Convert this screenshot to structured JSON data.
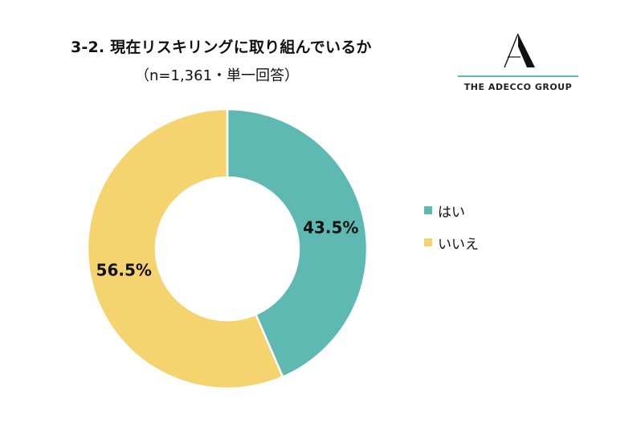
{
  "header": {
    "title": "3-2. 現在リスキリングに取り組んでいるか",
    "subtitle": "（n=1,361・単一回答）"
  },
  "logo": {
    "text": "THE ADECCO GROUP",
    "line_color": "#5ab9b3"
  },
  "chart_data": {
    "type": "pie",
    "donut": true,
    "title": "3-2. 現在リスキリングに取り組んでいるか",
    "subtitle": "（n=1,361・単一回答）",
    "categories": [
      "はい",
      "いいえ"
    ],
    "values": [
      43.5,
      56.5
    ],
    "labels": [
      "43.5%",
      "56.5%"
    ],
    "colors": [
      "#5eb9b3",
      "#f5d46f"
    ],
    "legend_position": "right"
  }
}
